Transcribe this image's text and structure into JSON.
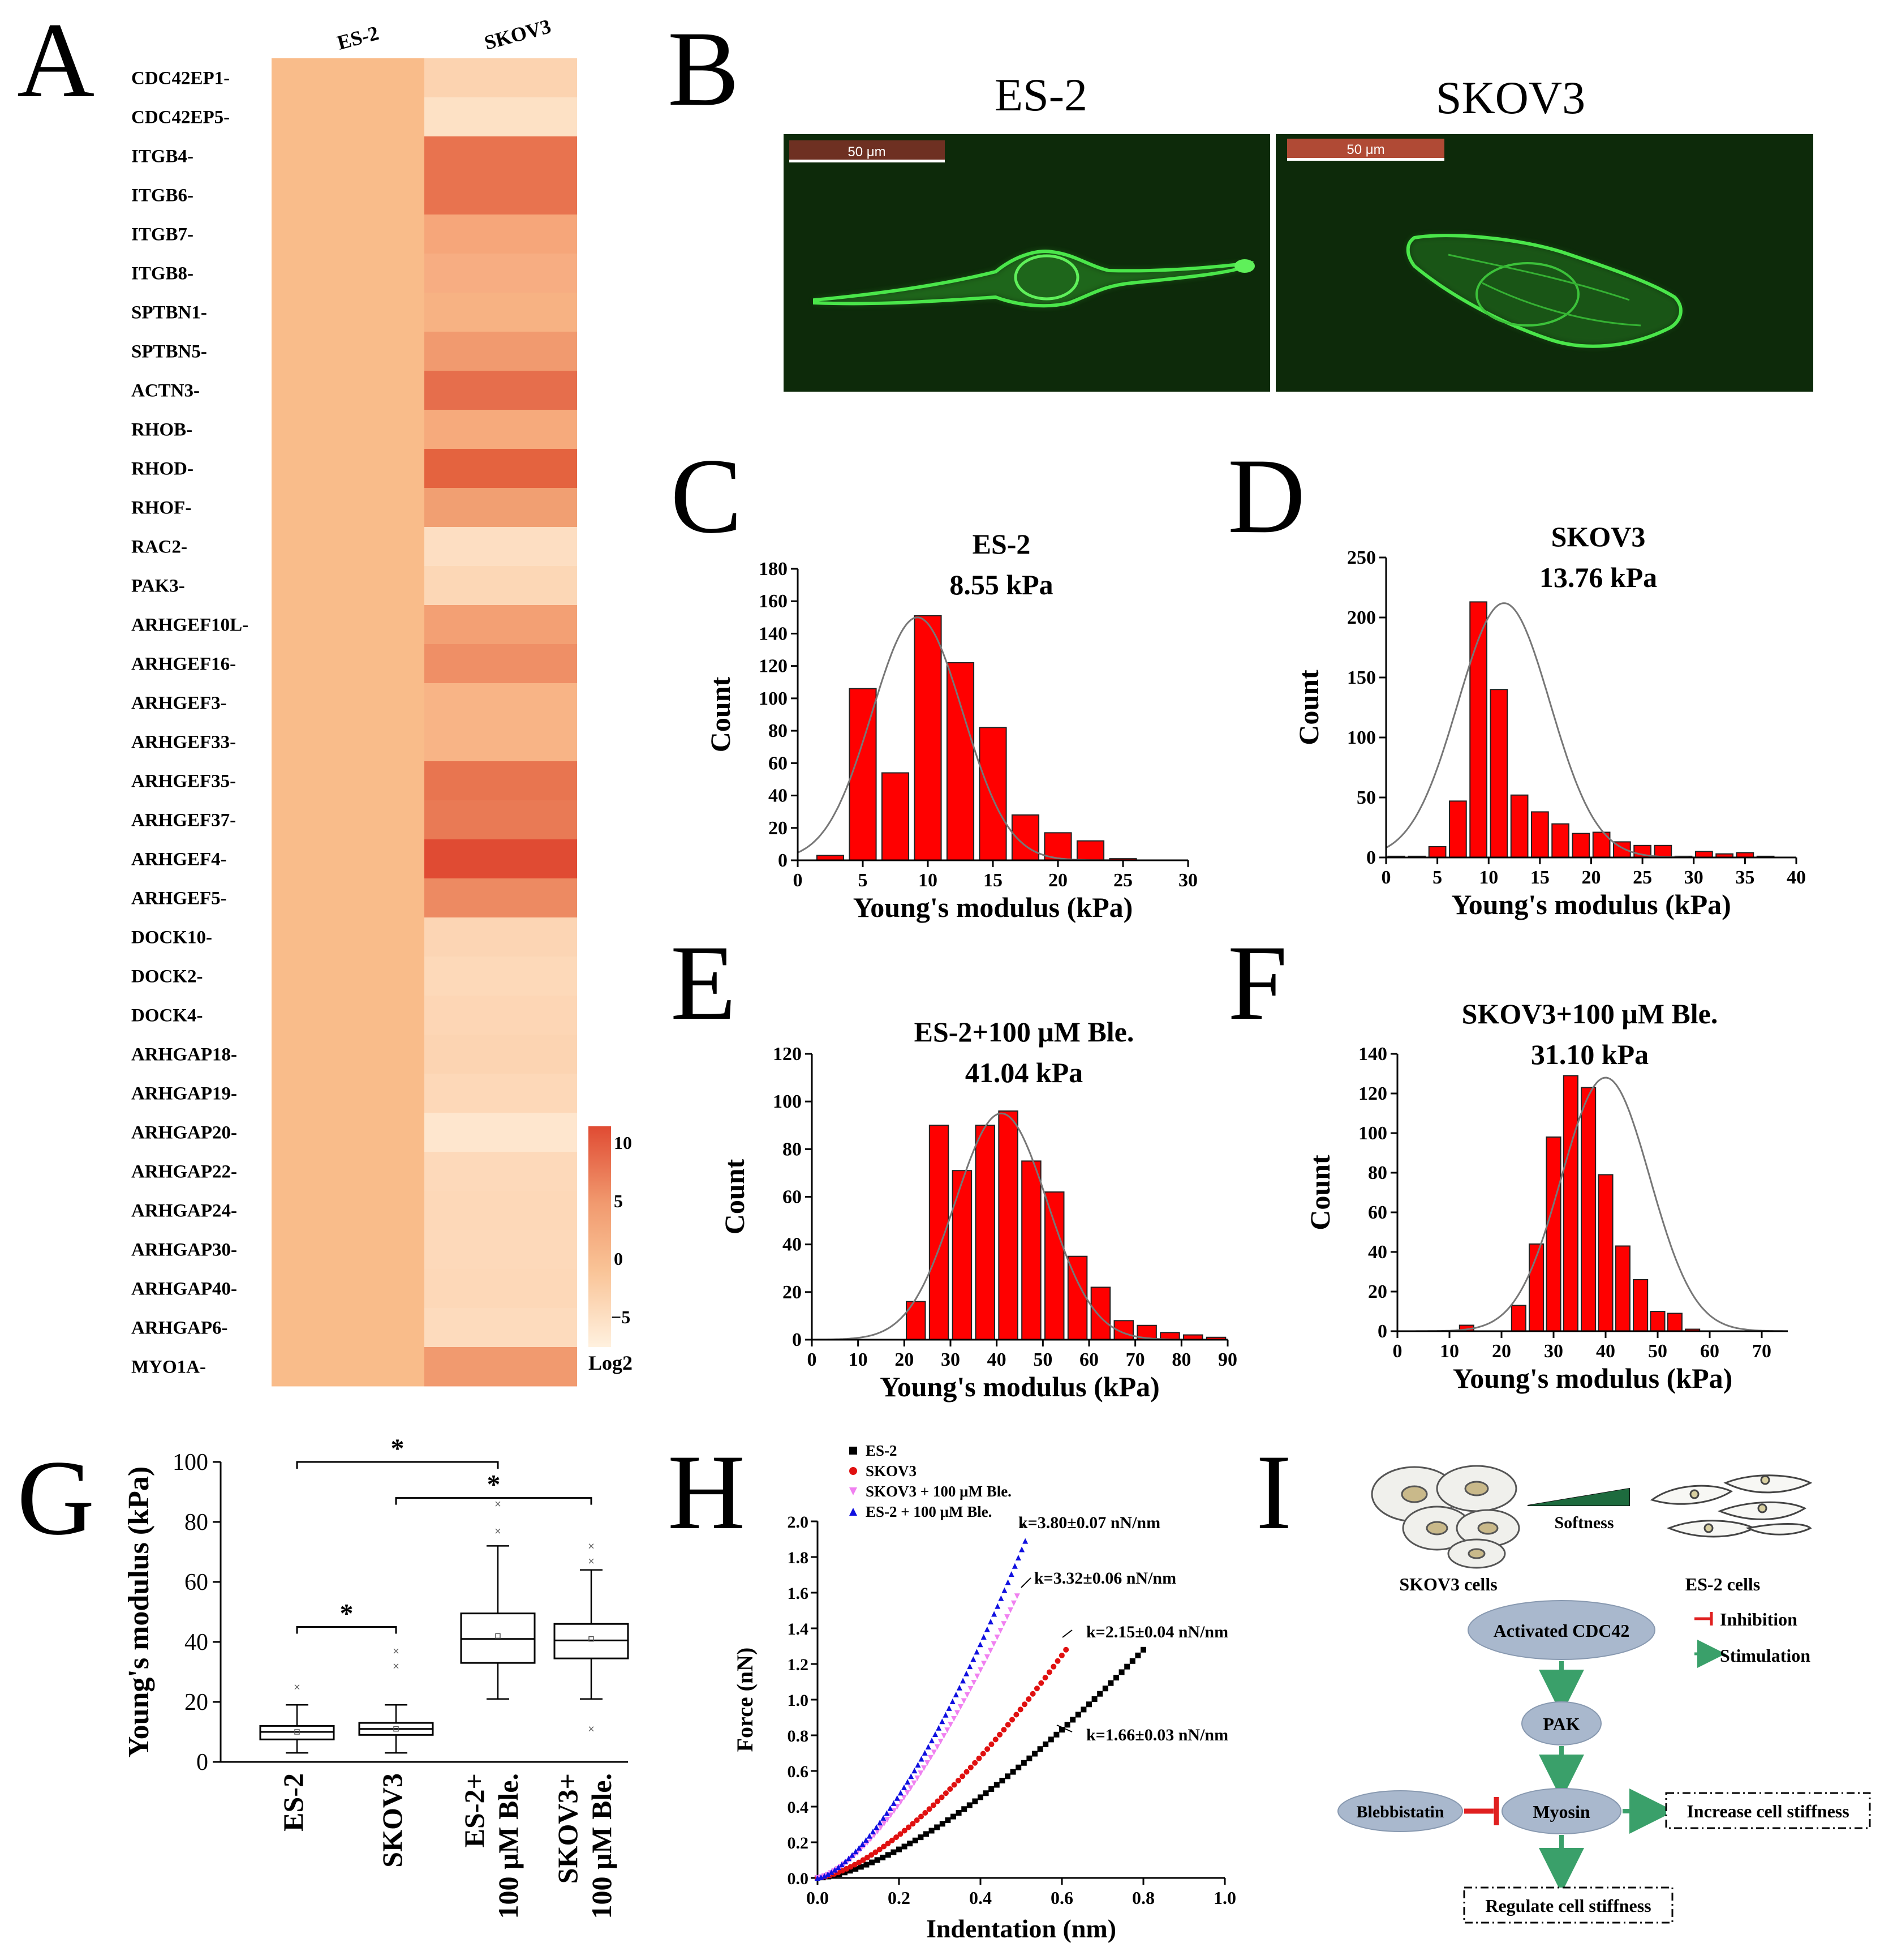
{
  "panel_letters": [
    "A",
    "B",
    "C",
    "D",
    "E",
    "F",
    "G",
    "H",
    "I"
  ],
  "heatmap": {
    "columns": [
      "ES-2",
      "SKOV3"
    ],
    "genes": [
      "CDC42EP1-",
      "CDC42EP5-",
      "ITGB4-",
      "ITGB6-",
      "ITGB7-",
      "ITGB8-",
      "SPTBN1-",
      "SPTBN5-",
      "ACTN3-",
      "RHOB-",
      "RHOD-",
      "RHOF-",
      "RAC2-",
      "PAK3-",
      "ARHGEF10L-",
      "ARHGEF16-",
      "ARHGEF3-",
      "ARHGEF33-",
      "ARHGEF35-",
      "ARHGEF37-",
      "ARHGEF4-",
      "ARHGEF5-",
      "DOCK10-",
      "DOCK2-",
      "DOCK4-",
      "ARHGAP18-",
      "ARHGAP19-",
      "ARHGAP20-",
      "ARHGAP22-",
      "ARHGAP24-",
      "ARHGAP30-",
      "ARHGAP40-",
      "ARHGAP6-",
      "MYO1A-"
    ],
    "es2_color": "#f9bc8a",
    "skov3_colors": [
      "#fcd3b0",
      "#fde1c5",
      "#e8734f",
      "#e8734f",
      "#f6a67a",
      "#f7ad82",
      "#f7b283",
      "#f19a6f",
      "#e66e4c",
      "#f6aa7c",
      "#e4633f",
      "#f19f72",
      "#fddec2",
      "#fcd7b6",
      "#f3a074",
      "#ef8f66",
      "#f8b486",
      "#f8b486",
      "#e87550",
      "#e97a55",
      "#e04b33",
      "#ed8a62",
      "#fcd5b4",
      "#fdd9b9",
      "#fdd6b5",
      "#fcd4b2",
      "#fdd8b8",
      "#fee6ce",
      "#fdd9ba",
      "#fdd8b8",
      "#fdd9ba",
      "#fdd8b8",
      "#fddbbd",
      "#f19a6f"
    ],
    "colorbar": {
      "ticks": [
        "10",
        "5",
        "0",
        "−5"
      ],
      "label": "Log2"
    }
  },
  "panel_b": {
    "titles": [
      "ES-2",
      "SKOV3"
    ],
    "scalebar_label": "50 μm",
    "image_bg": "#0d2a0a",
    "stain": "#3fd63a"
  },
  "chart_data": [
    {
      "panel": "C",
      "type": "bar",
      "title": "ES-2",
      "subtitle": "8.55 kPa",
      "xlabel": "Young's modulus (kPa)",
      "ylabel": "Count",
      "xlim": [
        0,
        30
      ],
      "ylim": [
        0,
        180
      ],
      "xticks": [
        "0",
        "5",
        "10",
        "15",
        "20",
        "25",
        "30"
      ],
      "yticks": [
        "0",
        "20",
        "40",
        "60",
        "80",
        "100",
        "120",
        "140",
        "160",
        "180"
      ],
      "bin_width": 2.5,
      "bins": [
        2.5,
        5,
        7.5,
        10,
        12.5,
        15,
        17.5,
        20,
        22.5,
        25
      ],
      "values": [
        3,
        106,
        54,
        151,
        122,
        82,
        28,
        17,
        12,
        1
      ],
      "fit": {
        "type": "gaussian",
        "mean": 9.2,
        "sd": 3.5,
        "peak": 150
      },
      "bar_color": "#ff0000"
    },
    {
      "panel": "D",
      "type": "bar",
      "title": "SKOV3",
      "subtitle": "13.76 kPa",
      "xlabel": "Young's modulus (kPa)",
      "ylabel": "Count",
      "xlim": [
        0,
        40
      ],
      "ylim": [
        0,
        250
      ],
      "xticks": [
        "0",
        "5",
        "10",
        "15",
        "20",
        "25",
        "30",
        "35",
        "40"
      ],
      "yticks": [
        "0",
        "50",
        "100",
        "150",
        "200",
        "250"
      ],
      "bin_width": 2,
      "bins": [
        1,
        3,
        5,
        7,
        9,
        11,
        13,
        15,
        17,
        19,
        21,
        23,
        25,
        27,
        29,
        31,
        33,
        35,
        37
      ],
      "values": [
        1,
        1,
        9,
        47,
        213,
        140,
        52,
        38,
        28,
        20,
        21,
        13,
        10,
        10,
        1,
        5,
        3,
        4,
        1
      ],
      "fit": {
        "type": "gaussian",
        "mean": 11.5,
        "sd": 4.5,
        "peak": 212
      },
      "bar_color": "#ff0000"
    },
    {
      "panel": "E",
      "type": "bar",
      "title": "ES-2+100 μM Ble.",
      "subtitle": "41.04 kPa",
      "xlabel": "Young's modulus (kPa)",
      "ylabel": "Count",
      "xlim": [
        0,
        90
      ],
      "ylim": [
        0,
        120
      ],
      "xticks": [
        "0",
        "10",
        "20",
        "30",
        "40",
        "50",
        "60",
        "70",
        "80",
        "90"
      ],
      "yticks": [
        "0",
        "20",
        "40",
        "60",
        "80",
        "100",
        "120"
      ],
      "bin_width": 5,
      "bins": [
        22.5,
        27.5,
        32.5,
        37.5,
        42.5,
        47.5,
        52.5,
        57.5,
        62.5,
        67.5,
        72.5,
        77.5,
        82.5,
        87.5
      ],
      "values": [
        16,
        90,
        71,
        90,
        96,
        75,
        62,
        35,
        22,
        8,
        6,
        3,
        2,
        1
      ],
      "fit": {
        "type": "gaussian",
        "mean": 41,
        "sd": 10,
        "peak": 95
      },
      "bar_color": "#ff0000"
    },
    {
      "panel": "F",
      "type": "bar",
      "title": "SKOV3+100 μM Ble.",
      "subtitle": "31.10 kPa",
      "xlabel": "Young's modulus (kPa)",
      "ylabel": "Count",
      "xlim": [
        0,
        75
      ],
      "ylim": [
        0,
        140
      ],
      "xticks": [
        "0",
        "10",
        "20",
        "30",
        "40",
        "50",
        "60",
        "70"
      ],
      "yticks": [
        "0",
        "20",
        "40",
        "60",
        "80",
        "100",
        "120",
        "140"
      ],
      "bin_width": 3.33,
      "bins": [
        10,
        13.3,
        16.7,
        20,
        23.3,
        26.7,
        30,
        33.3,
        36.7,
        40,
        43.3,
        46.7,
        50,
        53.3,
        56.7,
        60,
        63.3,
        66.7,
        70,
        73.3
      ],
      "values": [
        0,
        3,
        0,
        0,
        13,
        44,
        98,
        129,
        123,
        79,
        43,
        26,
        10,
        9,
        1,
        0,
        0,
        0,
        0,
        0
      ],
      "fit": {
        "type": "gaussian",
        "mean": 40,
        "sd": 8.5,
        "peak": 128
      },
      "bar_color": "#ff0000"
    },
    {
      "panel": "G",
      "type": "box",
      "ylabel": "Young's modulus (kPa)",
      "ylim": [
        0,
        100
      ],
      "yticks": [
        "0",
        "20",
        "40",
        "60",
        "80",
        "100"
      ],
      "categories": [
        "ES-2",
        "SKOV3",
        "ES-2+\n100 μM Ble.",
        "SKOV3+\n100 μM Ble."
      ],
      "boxes": [
        {
          "min": 3,
          "q1": 7.5,
          "median": 10,
          "q3": 12,
          "max": 19,
          "mean": 10,
          "outliers": [
            25
          ]
        },
        {
          "min": 3,
          "q1": 9,
          "median": 11,
          "q3": 13,
          "max": 19,
          "mean": 11,
          "outliers": [
            32,
            37
          ]
        },
        {
          "min": 21,
          "q1": 33,
          "median": 41,
          "q3": 49.5,
          "max": 72,
          "mean": 42,
          "outliers": [
            77,
            86
          ]
        },
        {
          "min": 21,
          "q1": 34.5,
          "median": 40.5,
          "q3": 46,
          "max": 64,
          "mean": 41,
          "outliers": [
            67,
            72,
            11
          ]
        }
      ],
      "significance": [
        {
          "from": 0,
          "to": 1,
          "level": 45,
          "label": "*"
        },
        {
          "from": 0,
          "to": 2,
          "level": 100,
          "label": "*"
        },
        {
          "from": 1,
          "to": 3,
          "level": 88,
          "label": "*"
        }
      ]
    },
    {
      "panel": "H",
      "type": "scatter",
      "xlabel": "Indentation (nm)",
      "ylabel": "Force (nN)",
      "xlim": [
        0,
        1.0
      ],
      "ylim": [
        0,
        2.0
      ],
      "xticks": [
        "0.0",
        "0.2",
        "0.4",
        "0.6",
        "0.8",
        "1.0"
      ],
      "yticks": [
        "0.0",
        "0.2",
        "0.4",
        "0.6",
        "0.8",
        "1.0",
        "1.2",
        "1.4",
        "1.6",
        "1.8",
        "2.0"
      ],
      "series": [
        {
          "name": "ES-2",
          "color": "#000000",
          "marker": "square",
          "x_max": 0.8,
          "y_max": 1.28,
          "k_label": "k=1.66±0.03 nN/nm"
        },
        {
          "name": "SKOV3",
          "color": "#e01010",
          "marker": "circle",
          "x_max": 0.61,
          "y_max": 1.28,
          "k_label": "k=2.15±0.04 nN/nm"
        },
        {
          "name": "SKOV3 + 100 μM Ble.",
          "color": "#f080f0",
          "marker": "triangle-down",
          "x_max": 0.49,
          "y_max": 1.58,
          "k_label": "k=3.32±0.06 nN/nm"
        },
        {
          "name": "ES-2 + 100 μM Ble.",
          "color": "#1010e0",
          "marker": "triangle-up",
          "x_max": 0.51,
          "y_max": 1.89,
          "k_label": "k=3.80±0.07 nN/nm"
        }
      ]
    }
  ],
  "panel_i": {
    "skov3_cells": "SKOV3 cells",
    "es2_cells": "ES-2 cells",
    "softness": "Softness",
    "legend_inhibition": "Inhibition",
    "legend_stimulation": "Stimulation",
    "node_cdc42": "Activated CDC42",
    "node_pak": "PAK",
    "node_myosin": "Myosin",
    "node_blebbistatin": "Blebbistatin",
    "box_increase": "Increase cell stiffness",
    "box_regulate": "Regulate cell stiffness",
    "node_fill": "#a9b8cd",
    "arrow_color": "#3aa06a",
    "inhibit_color": "#e02020"
  }
}
